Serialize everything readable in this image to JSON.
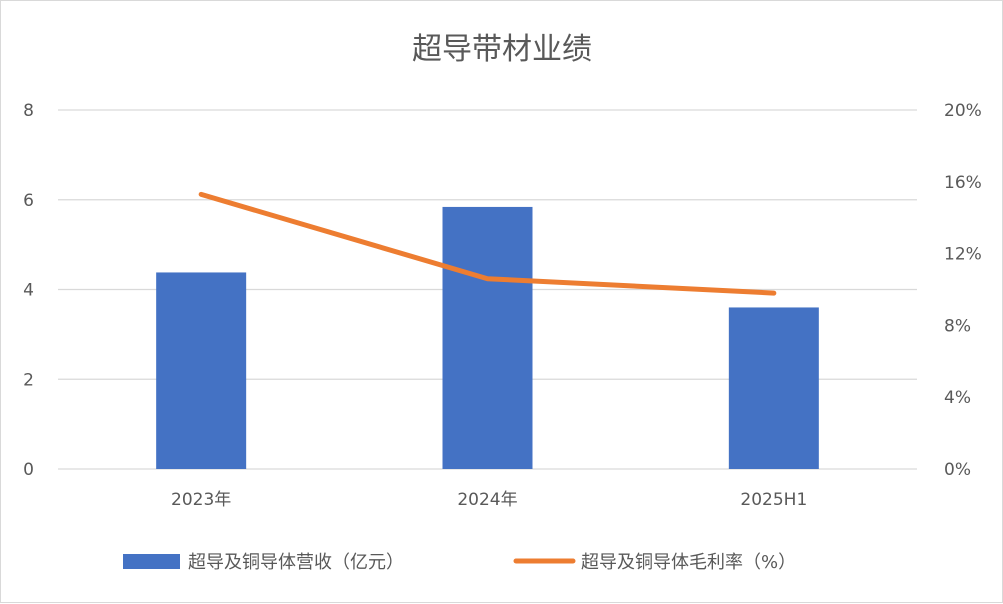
{
  "chart_data": {
    "type": "bar+line",
    "title": "超导带材业绩",
    "categories": [
      "2023年",
      "2024年",
      "2025H1"
    ],
    "series": [
      {
        "name": "超导及铜导体营收（亿元）",
        "type": "bar",
        "axis": "left",
        "color": "#4472c4",
        "values": [
          4.38,
          5.84,
          3.6
        ]
      },
      {
        "name": "超导及铜导体毛利率（%）",
        "type": "line",
        "axis": "right",
        "color": "#ed7d31",
        "values": [
          15.3,
          10.6,
          9.8
        ]
      }
    ],
    "y_left": {
      "min": 0,
      "max": 8,
      "ticks": [
        "0",
        "2",
        "4",
        "6",
        "8"
      ]
    },
    "y_right": {
      "min": 0,
      "max": 20,
      "ticks": [
        "0%",
        "4%",
        "8%",
        "12%",
        "16%",
        "20%"
      ]
    },
    "grid": true,
    "legend_position": "bottom"
  }
}
